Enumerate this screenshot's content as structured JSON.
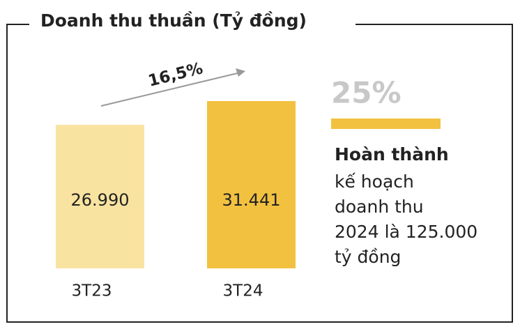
{
  "chart_data": {
    "type": "bar",
    "title": "Doanh thu thuần (Tỷ đồng)",
    "categories": [
      "3T23",
      "3T24"
    ],
    "values": [
      26990,
      31441
    ],
    "value_labels": [
      "26.990",
      "31.441"
    ],
    "colors": [
      "#f9e3a0",
      "#f2c140"
    ],
    "growth_label": "16,5%",
    "completion_percent": "25%",
    "completion_title": "Hoàn thành",
    "completion_lines": [
      "kế hoạch",
      "doanh thu",
      "2024 là 125.000",
      "tỷ đồng"
    ]
  }
}
